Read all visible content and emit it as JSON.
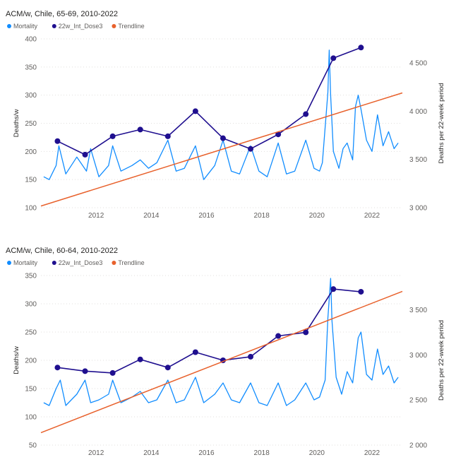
{
  "colors": {
    "mortality": "#118dff",
    "dose3": "#1f0f8f",
    "trendline": "#e8612c"
  },
  "legend_labels": [
    "Mortality",
    "22w_Int_Dose3",
    "Trendline"
  ],
  "chart_data": [
    {
      "type": "line",
      "title": "ACM/w, Chile, 65-69, 2010-2022",
      "xlabel": "",
      "ylabel": "Deaths/w",
      "y2label": "Deaths per 22-week period",
      "xlim": [
        2010.0,
        2023.1
      ],
      "ylim": [
        100,
        400
      ],
      "y2lim": [
        3000,
        4750
      ],
      "xticks": [
        2012,
        2014,
        2016,
        2018,
        2020,
        2022
      ],
      "xtick_labels": [
        "2012",
        "2014",
        "2016",
        "2018",
        "2020",
        "2022"
      ],
      "yticks": [
        100,
        150,
        200,
        250,
        300,
        350,
        400
      ],
      "ytick_labels": [
        "100",
        "150",
        "200",
        "250",
        "300",
        "350",
        "400"
      ],
      "y2ticks": [
        3000,
        3500,
        4000,
        4500
      ],
      "y2tick_labels": [
        "3 000",
        "3 500",
        "4 000",
        "4 500"
      ],
      "legend": "top-left",
      "series": [
        {
          "name": "Mortality",
          "axis": "left",
          "x": [
            2010.1,
            2010.3,
            2010.55,
            2010.65,
            2010.9,
            2011.3,
            2011.65,
            2011.8,
            2012.1,
            2012.45,
            2012.6,
            2012.9,
            2013.3,
            2013.6,
            2013.9,
            2014.2,
            2014.6,
            2014.9,
            2015.2,
            2015.6,
            2015.9,
            2016.3,
            2016.6,
            2016.9,
            2017.2,
            2017.6,
            2017.9,
            2018.2,
            2018.6,
            2018.9,
            2019.2,
            2019.6,
            2019.9,
            2020.1,
            2020.2,
            2020.4,
            2020.45,
            2020.5,
            2020.6,
            2020.8,
            2020.95,
            2021.1,
            2021.3,
            2021.4,
            2021.5,
            2021.6,
            2021.8,
            2022.0,
            2022.2,
            2022.4,
            2022.6,
            2022.8,
            2022.95
          ],
          "y": [
            155,
            150,
            175,
            210,
            160,
            190,
            165,
            205,
            155,
            175,
            210,
            165,
            175,
            185,
            170,
            180,
            220,
            165,
            170,
            210,
            150,
            175,
            220,
            165,
            160,
            210,
            165,
            155,
            215,
            160,
            165,
            220,
            170,
            165,
            180,
            305,
            380,
            300,
            200,
            170,
            205,
            215,
            185,
            280,
            300,
            275,
            220,
            200,
            265,
            210,
            235,
            205,
            215
          ]
        },
        {
          "name": "22w_Int_Dose3",
          "axis": "right",
          "x": [
            2010.6,
            2011.6,
            2012.6,
            2013.6,
            2014.6,
            2015.6,
            2016.6,
            2017.6,
            2018.6,
            2019.6,
            2020.6,
            2021.6
          ],
          "y": [
            3690,
            3550,
            3740,
            3810,
            3740,
            4000,
            3720,
            3610,
            3760,
            3970,
            4550,
            4660
          ]
        },
        {
          "name": "Trendline",
          "axis": "left",
          "x": [
            2010.0,
            2023.1
          ],
          "y": [
            103,
            304
          ]
        }
      ]
    },
    {
      "type": "line",
      "title": "ACM/w, Chile, 60-64, 2010-2022",
      "xlabel": "",
      "ylabel": "Deaths/w",
      "y2label": "Deaths per 22-week period",
      "xlim": [
        2010.0,
        2023.1
      ],
      "ylim": [
        50,
        350
      ],
      "y2lim": [
        2000,
        3880
      ],
      "xticks": [
        2012,
        2014,
        2016,
        2018,
        2020,
        2022
      ],
      "xtick_labels": [
        "2012",
        "2014",
        "2016",
        "2018",
        "2020",
        "2022"
      ],
      "yticks": [
        50,
        100,
        150,
        200,
        250,
        300,
        350
      ],
      "ytick_labels": [
        "50",
        "100",
        "150",
        "200",
        "250",
        "300",
        "350"
      ],
      "y2ticks": [
        2000,
        2500,
        3000,
        3500
      ],
      "y2tick_labels": [
        "2 000",
        "2 500",
        "3 000",
        "3 500"
      ],
      "legend": "top-left",
      "series": [
        {
          "name": "Mortality",
          "axis": "left",
          "x": [
            2010.1,
            2010.3,
            2010.55,
            2010.7,
            2010.9,
            2011.3,
            2011.6,
            2011.8,
            2012.1,
            2012.45,
            2012.6,
            2012.9,
            2013.3,
            2013.6,
            2013.9,
            2014.2,
            2014.6,
            2014.9,
            2015.2,
            2015.6,
            2015.9,
            2016.3,
            2016.6,
            2016.9,
            2017.2,
            2017.6,
            2017.9,
            2018.2,
            2018.6,
            2018.9,
            2019.2,
            2019.6,
            2019.9,
            2020.1,
            2020.3,
            2020.4,
            2020.5,
            2020.55,
            2020.7,
            2020.9,
            2021.1,
            2021.3,
            2021.5,
            2021.6,
            2021.8,
            2022.0,
            2022.2,
            2022.4,
            2022.6,
            2022.8,
            2022.95
          ],
          "y": [
            125,
            120,
            150,
            165,
            120,
            140,
            165,
            125,
            130,
            140,
            165,
            125,
            135,
            145,
            125,
            130,
            165,
            125,
            130,
            170,
            125,
            140,
            160,
            130,
            125,
            160,
            125,
            120,
            160,
            120,
            130,
            160,
            130,
            135,
            165,
            275,
            345,
            270,
            170,
            140,
            180,
            160,
            240,
            250,
            175,
            165,
            220,
            175,
            190,
            160,
            170
          ]
        },
        {
          "name": "22w_Int_Dose3",
          "axis": "right",
          "x": [
            2010.6,
            2011.6,
            2012.6,
            2013.6,
            2014.6,
            2015.6,
            2016.6,
            2017.6,
            2018.6,
            2019.6,
            2020.6,
            2021.6
          ],
          "y": [
            2860,
            2820,
            2800,
            2950,
            2860,
            3030,
            2940,
            2980,
            3210,
            3250,
            3730,
            3700
          ]
        },
        {
          "name": "Trendline",
          "axis": "left",
          "x": [
            2010.0,
            2023.1
          ],
          "y": [
            72,
            322
          ]
        }
      ]
    }
  ]
}
